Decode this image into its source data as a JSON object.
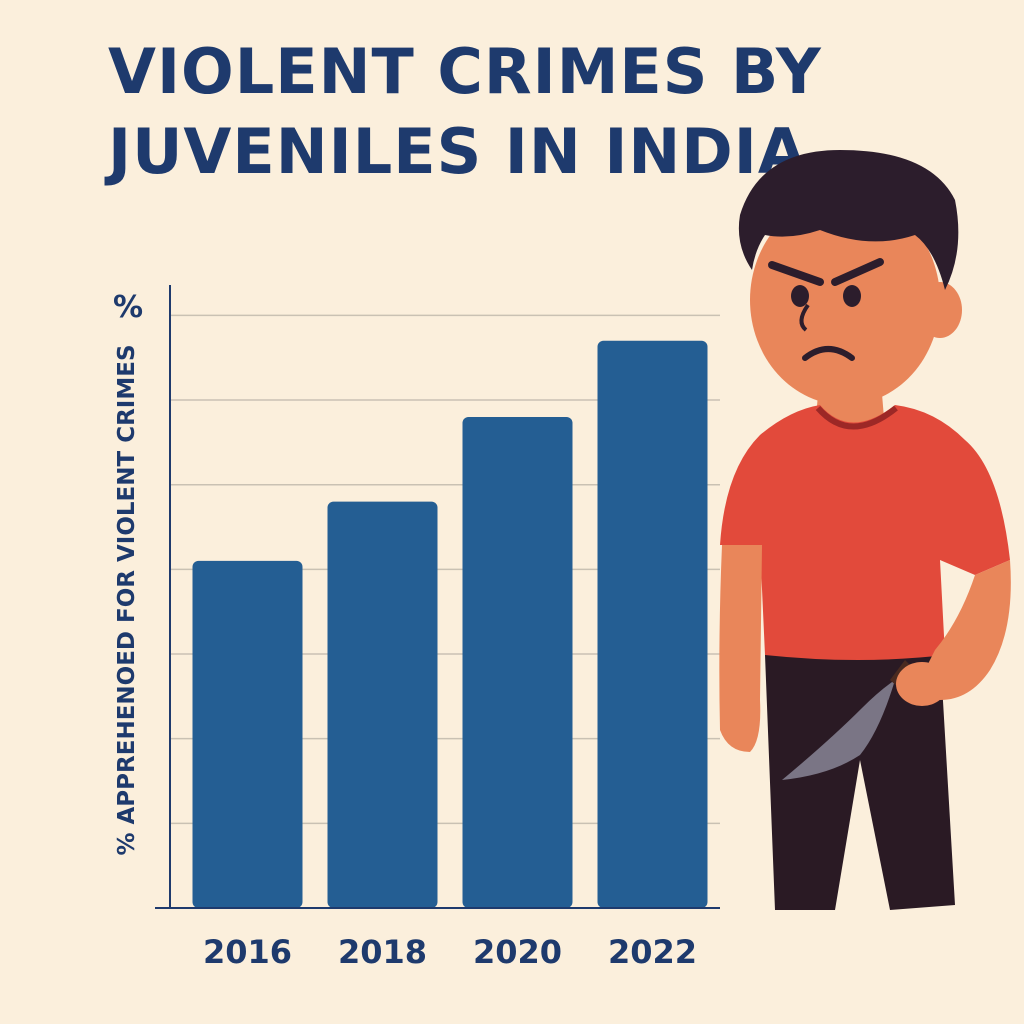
{
  "title_lines": [
    "VIOLENT CRIMES BY",
    "JUVENILES IN INDIA"
  ],
  "chart_data": {
    "type": "bar",
    "title": "VIOLENT CRIMES BY JUVENILES IN INDIA",
    "ylabel": "% APPREHENOED FOR VIOLENT CRIMES",
    "yunit": "%",
    "xlabel": "",
    "categories": [
      "2016",
      "2018",
      "2020",
      "2022"
    ],
    "values": [
      4.1,
      4.8,
      5.8,
      6.7
    ],
    "ylim": [
      0,
      7.3
    ],
    "gridlines": [
      1,
      2,
      3,
      4,
      5,
      6,
      7
    ],
    "grid": true,
    "bar_color": "#245e93",
    "axis_color": "#1e3a6d",
    "grid_color": "#c9c1b3"
  },
  "illustration": {
    "subject": "angry-boy-holding-knife",
    "shirt_color": "#e24a3b",
    "skin_color": "#e9865a",
    "hair_color": "#2c1d2c",
    "pants_color": "#2a1a24"
  }
}
